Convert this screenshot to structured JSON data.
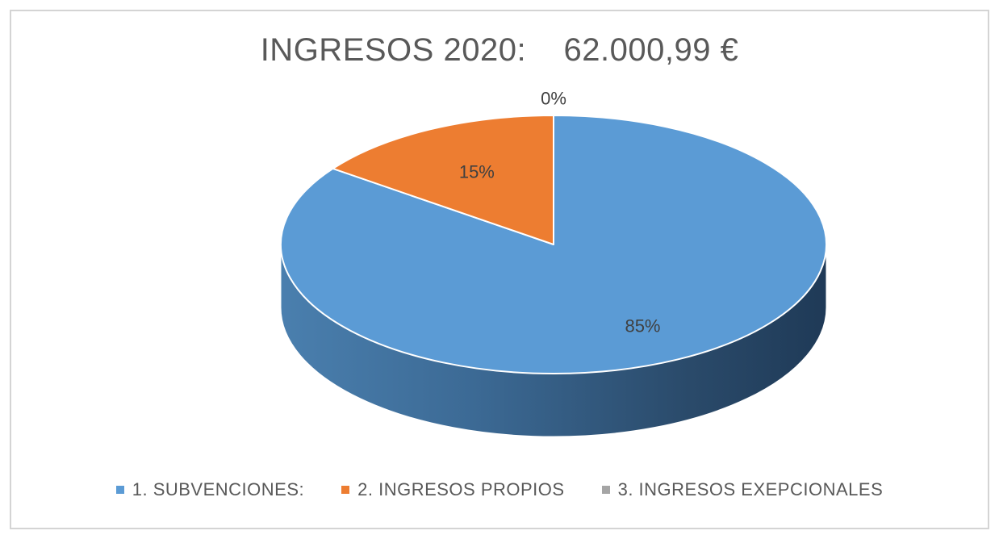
{
  "chart_data": {
    "type": "pie",
    "title": "INGRESOS 2020:    62.000,99 €",
    "categories": [
      "1. SUBVENCIONES:",
      "2. INGRESOS PROPIOS",
      "3. INGRESOS EXEPCIONALES"
    ],
    "values": [
      85,
      15,
      0
    ],
    "data_labels": [
      "85%",
      "15%",
      "0%"
    ],
    "colors": [
      "#5b9bd5",
      "#ed7d31",
      "#a5a5a5"
    ],
    "legend_position": "bottom",
    "style": "3d-pie"
  }
}
